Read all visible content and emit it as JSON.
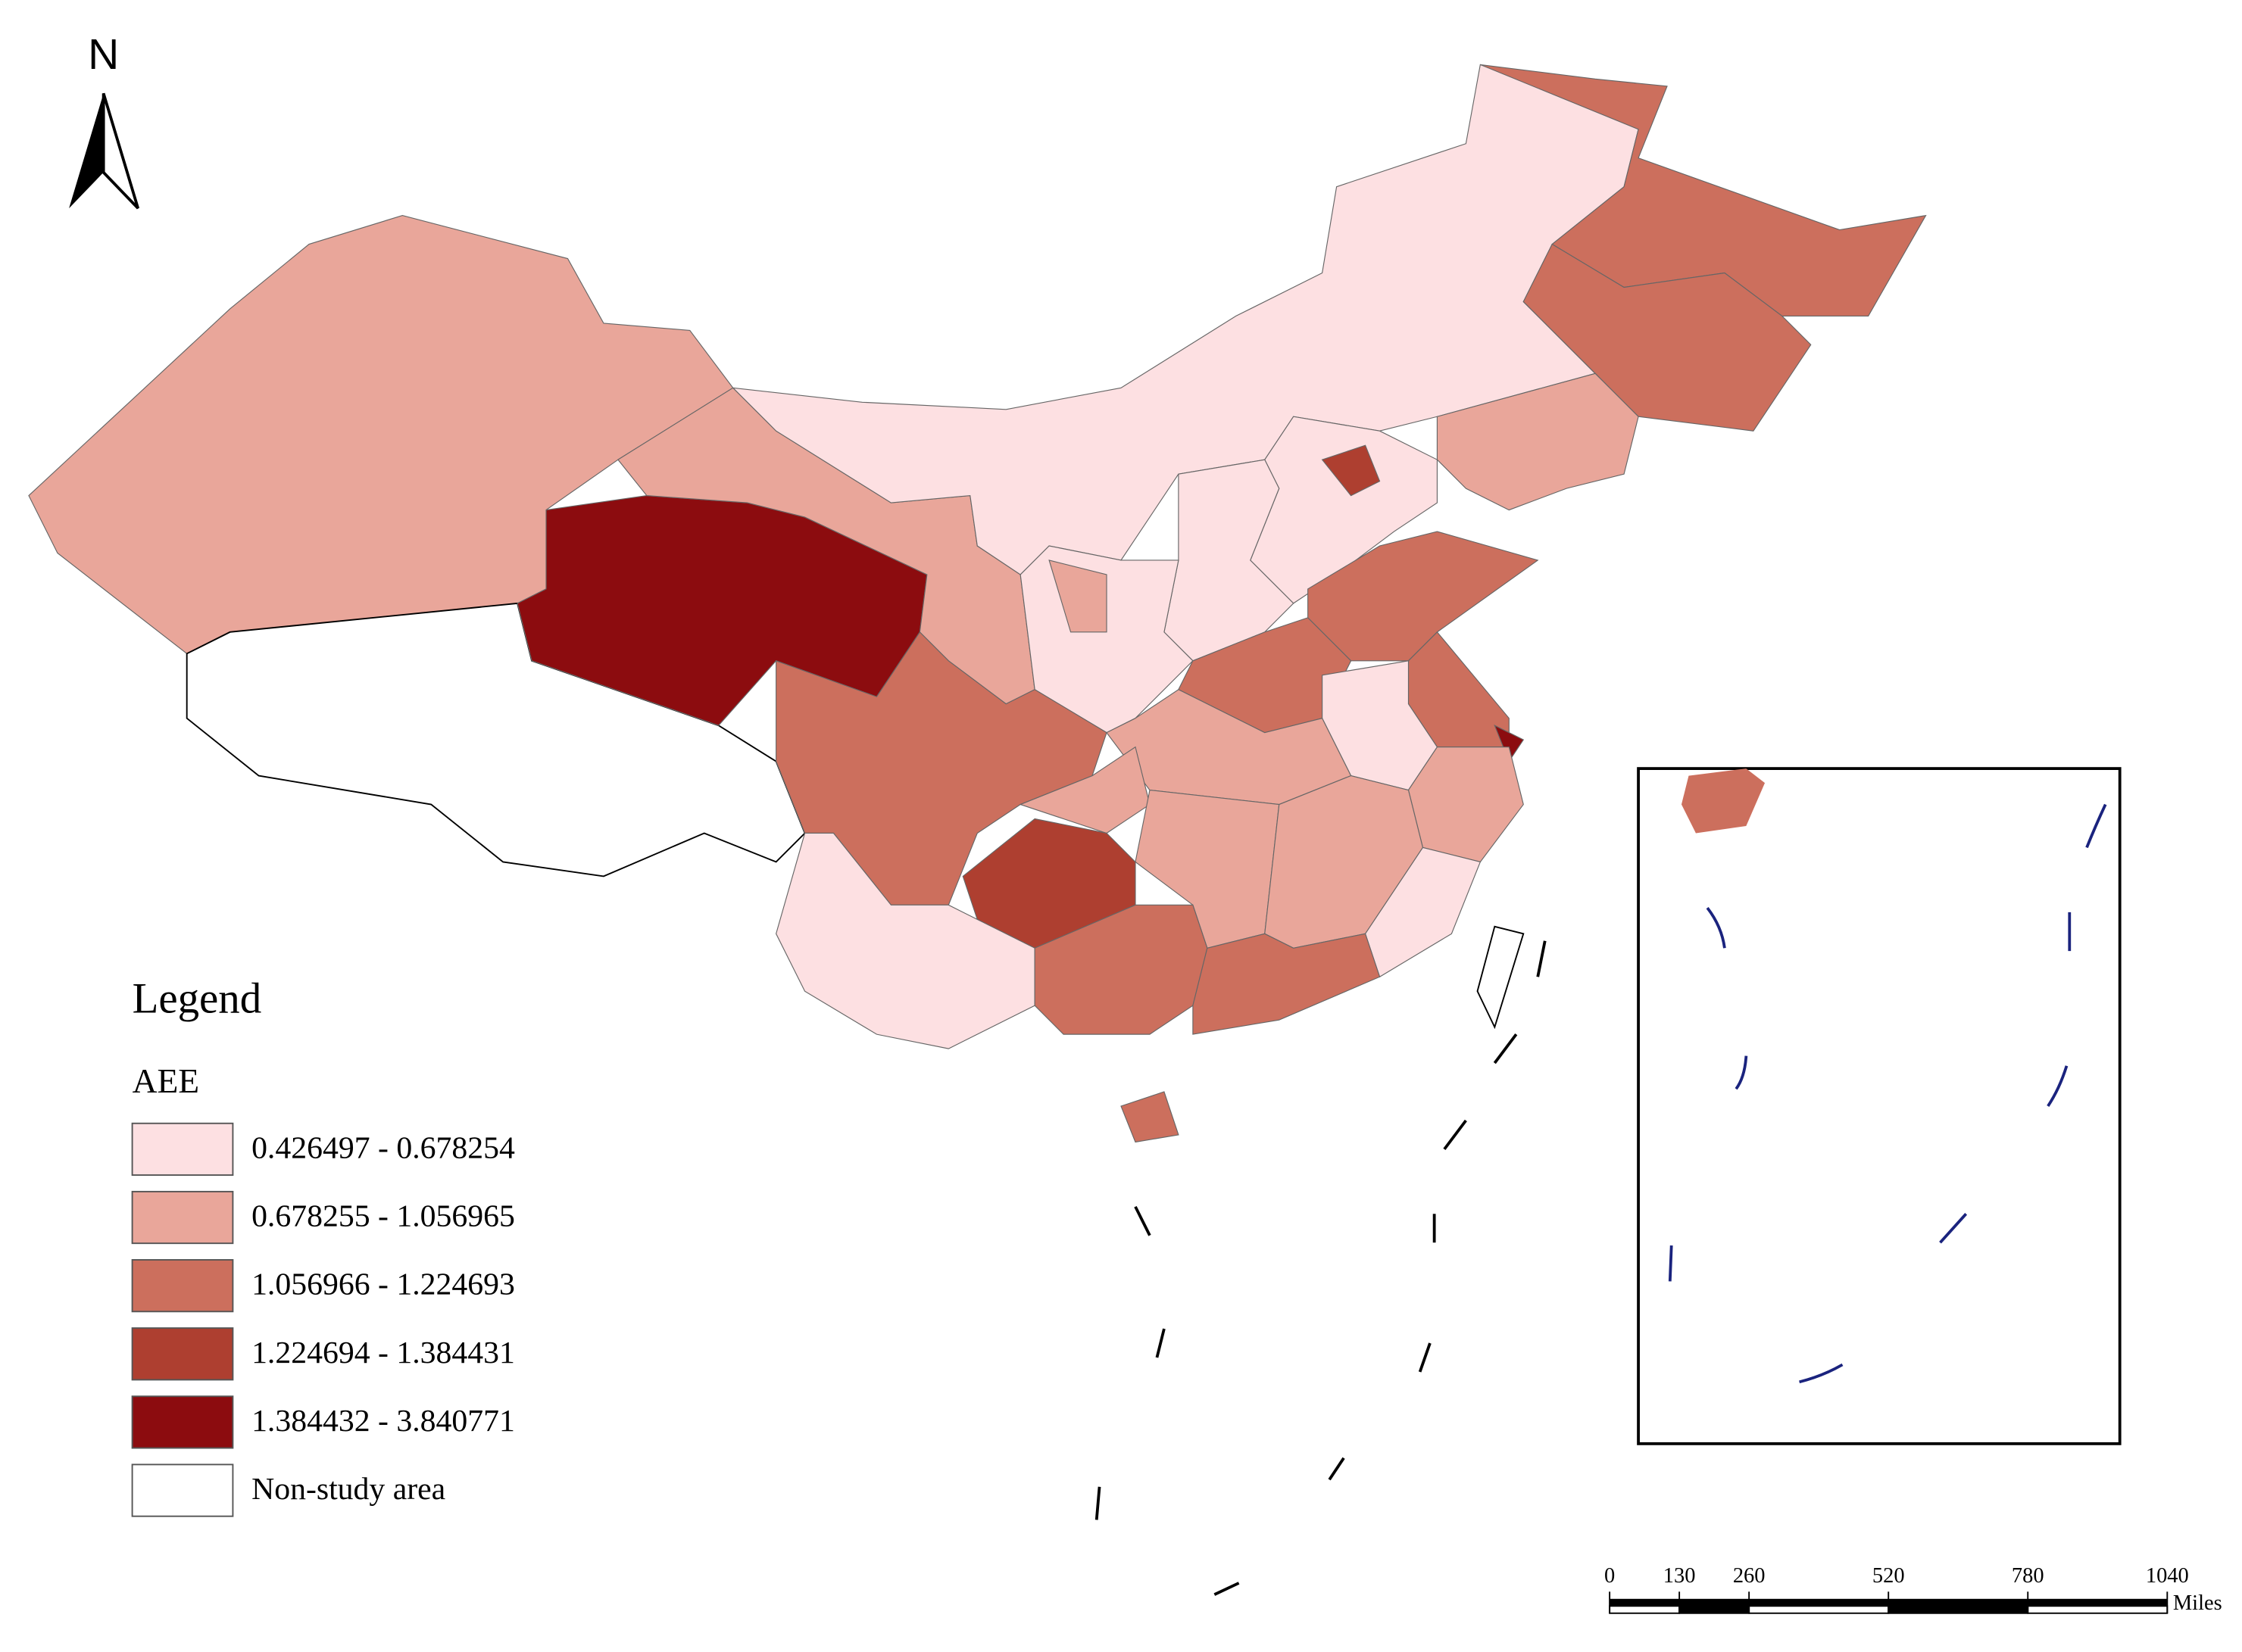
{
  "north_label": "N",
  "legend": {
    "title": "Legend",
    "field": "AEE",
    "classes": [
      {
        "label": "0.426497 - 0.678254",
        "color": "#fde0e2"
      },
      {
        "label": "0.678255 - 1.056965",
        "color": "#e9a69a"
      },
      {
        "label": "1.056966 - 1.224693",
        "color": "#cc6f5d"
      },
      {
        "label": "1.224694 - 1.384431",
        "color": "#ae3f30"
      },
      {
        "label": "1.384432 - 3.840771",
        "color": "#8c0c0f"
      },
      {
        "label": "Non-study area",
        "color": "#ffffff"
      }
    ]
  },
  "scale_bar": {
    "ticks": [
      0,
      130,
      260,
      520,
      780,
      1040
    ],
    "unit": "Miles"
  }
}
